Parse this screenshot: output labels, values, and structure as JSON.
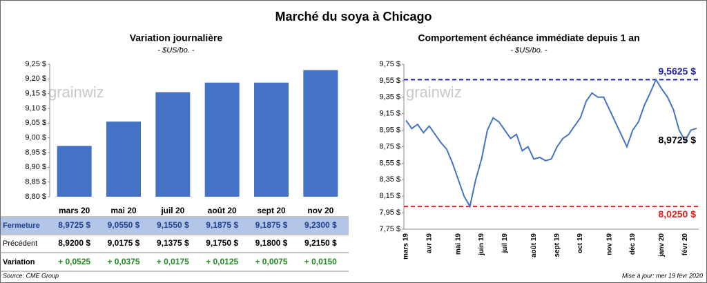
{
  "title": "Marché du soya à Chicago",
  "watermark": "grainwiz",
  "source": "Source: CME Group",
  "updated": "Mise à jour: mer 19 févr 2020",
  "chart_data": [
    {
      "type": "bar",
      "title": "Variation journalière",
      "subtitle": "- $US/bo. -",
      "categories": [
        "mars 20",
        "mai 20",
        "juil 20",
        "août 20",
        "sept 20",
        "nov 20"
      ],
      "values": [
        8.9725,
        9.055,
        9.155,
        9.1875,
        9.1875,
        9.23
      ],
      "color": "#4472c4",
      "ylim": [
        8.8,
        9.25
      ],
      "yticks": [
        {
          "value": 8.8,
          "label": "8,80 $"
        },
        {
          "value": 8.85,
          "label": "8,85 $"
        },
        {
          "value": 8.9,
          "label": "8,90 $"
        },
        {
          "value": 8.95,
          "label": "8,95 $"
        },
        {
          "value": 9.0,
          "label": "9,00 $"
        },
        {
          "value": 9.05,
          "label": "9,05 $"
        },
        {
          "value": 9.1,
          "label": "9,10 $"
        },
        {
          "value": 9.15,
          "label": "9,15 $"
        },
        {
          "value": 9.2,
          "label": "9,20 $"
        },
        {
          "value": 9.25,
          "label": "9,25 $"
        }
      ],
      "table": [
        {
          "label": "Fermeture",
          "background": "#b4c6e7",
          "color": "#1f3f8f",
          "cells": [
            "8,9725 $",
            "9,0550 $",
            "9,1550 $",
            "9,1875 $",
            "9,1875 $",
            "9,2300 $"
          ]
        },
        {
          "label": "Précédent",
          "color": "#000000",
          "cells": [
            "8,9200 $",
            "9,0175 $",
            "9,1375 $",
            "9,1750 $",
            "9,1800 $",
            "9,2150 $"
          ]
        },
        {
          "label": "Variation",
          "color": "#1e8c1e",
          "cells": [
            "+ 0,0525",
            "+ 0,0375",
            "+ 0,0175",
            "+ 0,0125",
            "+ 0,0075",
            "+ 0,0150"
          ]
        }
      ]
    },
    {
      "type": "line",
      "title": "Comportement  échéance immédiate depuis 1 an",
      "subtitle": "- $US/bo. -",
      "categories": [
        "mars 19",
        null,
        null,
        null,
        "avr 19",
        null,
        null,
        null,
        null,
        "mai 19",
        null,
        null,
        null,
        "juin 19",
        null,
        null,
        null,
        "juil 19",
        null,
        null,
        null,
        null,
        "août 19",
        null,
        null,
        null,
        "sept 19",
        null,
        null,
        null,
        "oct 19",
        null,
        null,
        null,
        null,
        "nov 19",
        null,
        null,
        null,
        "déc 19",
        null,
        null,
        null,
        null,
        "janv 20",
        null,
        null,
        null,
        "févr 20",
        null,
        null
      ],
      "series": [
        {
          "name": "Échéance immédiate",
          "color": "#4472c4",
          "values": [
            9.07,
            8.97,
            9.02,
            8.92,
            9.0,
            8.9,
            8.8,
            8.72,
            8.55,
            8.35,
            8.15,
            8.025,
            8.35,
            8.6,
            8.95,
            9.1,
            9.05,
            8.95,
            8.85,
            8.9,
            8.7,
            8.75,
            8.6,
            8.62,
            8.58,
            8.6,
            8.75,
            8.85,
            8.9,
            9.0,
            9.1,
            9.3,
            9.4,
            9.35,
            9.35,
            9.2,
            9.05,
            8.9,
            8.75,
            8.95,
            9.05,
            9.25,
            9.4,
            9.5625,
            9.45,
            9.35,
            9.2,
            8.95,
            8.82,
            8.95,
            8.9725
          ],
          "value_labels": [
            null,
            null,
            null,
            null,
            null,
            null,
            null,
            null,
            null,
            null,
            null,
            null,
            null,
            null,
            null,
            null,
            null,
            null,
            null,
            null,
            null,
            null,
            null,
            null,
            null,
            null,
            null,
            null,
            null,
            null,
            null,
            null,
            null,
            null,
            null,
            null,
            null,
            null,
            null,
            null,
            null,
            null,
            null,
            null,
            null,
            null,
            null,
            null,
            null,
            null,
            "8,9725 $"
          ]
        }
      ],
      "reference_lines": [
        {
          "value": 9.5625,
          "label": "9,5625 $",
          "color": "#1f1fa8"
        },
        {
          "value": 8.025,
          "label": "8,0250 $",
          "color": "#e02020"
        }
      ],
      "ylim": [
        7.75,
        9.75
      ],
      "yticks": [
        {
          "value": 7.75,
          "label": "7,75 $"
        },
        {
          "value": 7.95,
          "label": "7,95 $"
        },
        {
          "value": 8.15,
          "label": "8,15 $"
        },
        {
          "value": 8.35,
          "label": "8,35 $"
        },
        {
          "value": 8.55,
          "label": "8,55 $"
        },
        {
          "value": 8.75,
          "label": "8,75 $"
        },
        {
          "value": 8.95,
          "label": "8,95 $"
        },
        {
          "value": 9.15,
          "label": "9,15 $"
        },
        {
          "value": 9.35,
          "label": "9,35 $"
        },
        {
          "value": 9.55,
          "label": "9,55 $"
        },
        {
          "value": 9.75,
          "label": "9,75 $"
        }
      ]
    }
  ]
}
